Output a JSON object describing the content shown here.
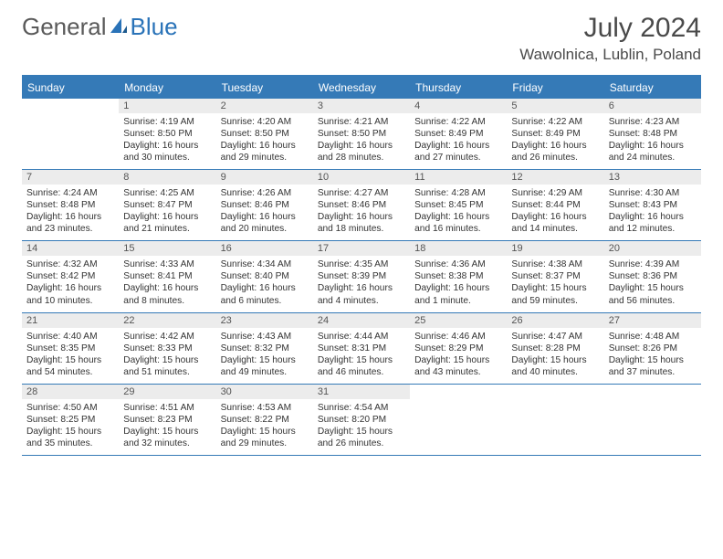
{
  "brand": {
    "part1": "General",
    "part2": "Blue",
    "accent_color": "#2a73b8",
    "text_color": "#5a5a5a"
  },
  "header": {
    "month_title": "July 2024",
    "location": "Wawolnica, Lublin, Poland"
  },
  "colors": {
    "header_bar": "#357ab7",
    "daynum_bg": "#ececec",
    "border": "#357ab7",
    "text": "#333333",
    "background": "#ffffff"
  },
  "dow": [
    "Sunday",
    "Monday",
    "Tuesday",
    "Wednesday",
    "Thursday",
    "Friday",
    "Saturday"
  ],
  "weeks": [
    [
      {
        "day": "",
        "sunrise": "",
        "sunset": "",
        "daylight": ""
      },
      {
        "day": "1",
        "sunrise": "Sunrise: 4:19 AM",
        "sunset": "Sunset: 8:50 PM",
        "daylight": "Daylight: 16 hours and 30 minutes."
      },
      {
        "day": "2",
        "sunrise": "Sunrise: 4:20 AM",
        "sunset": "Sunset: 8:50 PM",
        "daylight": "Daylight: 16 hours and 29 minutes."
      },
      {
        "day": "3",
        "sunrise": "Sunrise: 4:21 AM",
        "sunset": "Sunset: 8:50 PM",
        "daylight": "Daylight: 16 hours and 28 minutes."
      },
      {
        "day": "4",
        "sunrise": "Sunrise: 4:22 AM",
        "sunset": "Sunset: 8:49 PM",
        "daylight": "Daylight: 16 hours and 27 minutes."
      },
      {
        "day": "5",
        "sunrise": "Sunrise: 4:22 AM",
        "sunset": "Sunset: 8:49 PM",
        "daylight": "Daylight: 16 hours and 26 minutes."
      },
      {
        "day": "6",
        "sunrise": "Sunrise: 4:23 AM",
        "sunset": "Sunset: 8:48 PM",
        "daylight": "Daylight: 16 hours and 24 minutes."
      }
    ],
    [
      {
        "day": "7",
        "sunrise": "Sunrise: 4:24 AM",
        "sunset": "Sunset: 8:48 PM",
        "daylight": "Daylight: 16 hours and 23 minutes."
      },
      {
        "day": "8",
        "sunrise": "Sunrise: 4:25 AM",
        "sunset": "Sunset: 8:47 PM",
        "daylight": "Daylight: 16 hours and 21 minutes."
      },
      {
        "day": "9",
        "sunrise": "Sunrise: 4:26 AM",
        "sunset": "Sunset: 8:46 PM",
        "daylight": "Daylight: 16 hours and 20 minutes."
      },
      {
        "day": "10",
        "sunrise": "Sunrise: 4:27 AM",
        "sunset": "Sunset: 8:46 PM",
        "daylight": "Daylight: 16 hours and 18 minutes."
      },
      {
        "day": "11",
        "sunrise": "Sunrise: 4:28 AM",
        "sunset": "Sunset: 8:45 PM",
        "daylight": "Daylight: 16 hours and 16 minutes."
      },
      {
        "day": "12",
        "sunrise": "Sunrise: 4:29 AM",
        "sunset": "Sunset: 8:44 PM",
        "daylight": "Daylight: 16 hours and 14 minutes."
      },
      {
        "day": "13",
        "sunrise": "Sunrise: 4:30 AM",
        "sunset": "Sunset: 8:43 PM",
        "daylight": "Daylight: 16 hours and 12 minutes."
      }
    ],
    [
      {
        "day": "14",
        "sunrise": "Sunrise: 4:32 AM",
        "sunset": "Sunset: 8:42 PM",
        "daylight": "Daylight: 16 hours and 10 minutes."
      },
      {
        "day": "15",
        "sunrise": "Sunrise: 4:33 AM",
        "sunset": "Sunset: 8:41 PM",
        "daylight": "Daylight: 16 hours and 8 minutes."
      },
      {
        "day": "16",
        "sunrise": "Sunrise: 4:34 AM",
        "sunset": "Sunset: 8:40 PM",
        "daylight": "Daylight: 16 hours and 6 minutes."
      },
      {
        "day": "17",
        "sunrise": "Sunrise: 4:35 AM",
        "sunset": "Sunset: 8:39 PM",
        "daylight": "Daylight: 16 hours and 4 minutes."
      },
      {
        "day": "18",
        "sunrise": "Sunrise: 4:36 AM",
        "sunset": "Sunset: 8:38 PM",
        "daylight": "Daylight: 16 hours and 1 minute."
      },
      {
        "day": "19",
        "sunrise": "Sunrise: 4:38 AM",
        "sunset": "Sunset: 8:37 PM",
        "daylight": "Daylight: 15 hours and 59 minutes."
      },
      {
        "day": "20",
        "sunrise": "Sunrise: 4:39 AM",
        "sunset": "Sunset: 8:36 PM",
        "daylight": "Daylight: 15 hours and 56 minutes."
      }
    ],
    [
      {
        "day": "21",
        "sunrise": "Sunrise: 4:40 AM",
        "sunset": "Sunset: 8:35 PM",
        "daylight": "Daylight: 15 hours and 54 minutes."
      },
      {
        "day": "22",
        "sunrise": "Sunrise: 4:42 AM",
        "sunset": "Sunset: 8:33 PM",
        "daylight": "Daylight: 15 hours and 51 minutes."
      },
      {
        "day": "23",
        "sunrise": "Sunrise: 4:43 AM",
        "sunset": "Sunset: 8:32 PM",
        "daylight": "Daylight: 15 hours and 49 minutes."
      },
      {
        "day": "24",
        "sunrise": "Sunrise: 4:44 AM",
        "sunset": "Sunset: 8:31 PM",
        "daylight": "Daylight: 15 hours and 46 minutes."
      },
      {
        "day": "25",
        "sunrise": "Sunrise: 4:46 AM",
        "sunset": "Sunset: 8:29 PM",
        "daylight": "Daylight: 15 hours and 43 minutes."
      },
      {
        "day": "26",
        "sunrise": "Sunrise: 4:47 AM",
        "sunset": "Sunset: 8:28 PM",
        "daylight": "Daylight: 15 hours and 40 minutes."
      },
      {
        "day": "27",
        "sunrise": "Sunrise: 4:48 AM",
        "sunset": "Sunset: 8:26 PM",
        "daylight": "Daylight: 15 hours and 37 minutes."
      }
    ],
    [
      {
        "day": "28",
        "sunrise": "Sunrise: 4:50 AM",
        "sunset": "Sunset: 8:25 PM",
        "daylight": "Daylight: 15 hours and 35 minutes."
      },
      {
        "day": "29",
        "sunrise": "Sunrise: 4:51 AM",
        "sunset": "Sunset: 8:23 PM",
        "daylight": "Daylight: 15 hours and 32 minutes."
      },
      {
        "day": "30",
        "sunrise": "Sunrise: 4:53 AM",
        "sunset": "Sunset: 8:22 PM",
        "daylight": "Daylight: 15 hours and 29 minutes."
      },
      {
        "day": "31",
        "sunrise": "Sunrise: 4:54 AM",
        "sunset": "Sunset: 8:20 PM",
        "daylight": "Daylight: 15 hours and 26 minutes."
      },
      {
        "day": "",
        "sunrise": "",
        "sunset": "",
        "daylight": ""
      },
      {
        "day": "",
        "sunrise": "",
        "sunset": "",
        "daylight": ""
      },
      {
        "day": "",
        "sunrise": "",
        "sunset": "",
        "daylight": ""
      }
    ]
  ]
}
